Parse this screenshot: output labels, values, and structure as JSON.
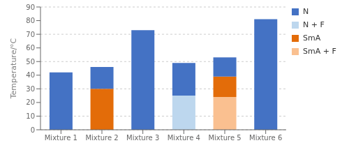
{
  "chart_data": {
    "type": "bar",
    "stacked": true,
    "categories": [
      "Mixture 1",
      "Mixture 2",
      "Mixture 3",
      "Mixture 4",
      "Mixture 5",
      "Mixture 6"
    ],
    "series": [
      {
        "name": "SmA + F",
        "color": "#FAC090",
        "values": [
          0,
          0,
          0,
          0,
          24,
          0
        ]
      },
      {
        "name": "SmA",
        "color": "#E36C09",
        "values": [
          0,
          30,
          0,
          0,
          15,
          0
        ]
      },
      {
        "name": "N + F",
        "color": "#BDD7EE",
        "values": [
          0,
          0,
          0,
          25,
          0,
          0
        ]
      },
      {
        "name": "N",
        "color": "#4472C4",
        "values": [
          42,
          16,
          73,
          24,
          14,
          81
        ]
      }
    ],
    "ylabel": "Temperature/°C",
    "ylim": [
      0,
      90
    ],
    "yticks": [
      0,
      10,
      20,
      30,
      40,
      50,
      60,
      70,
      80,
      90
    ],
    "grid": true,
    "legend": "right"
  }
}
